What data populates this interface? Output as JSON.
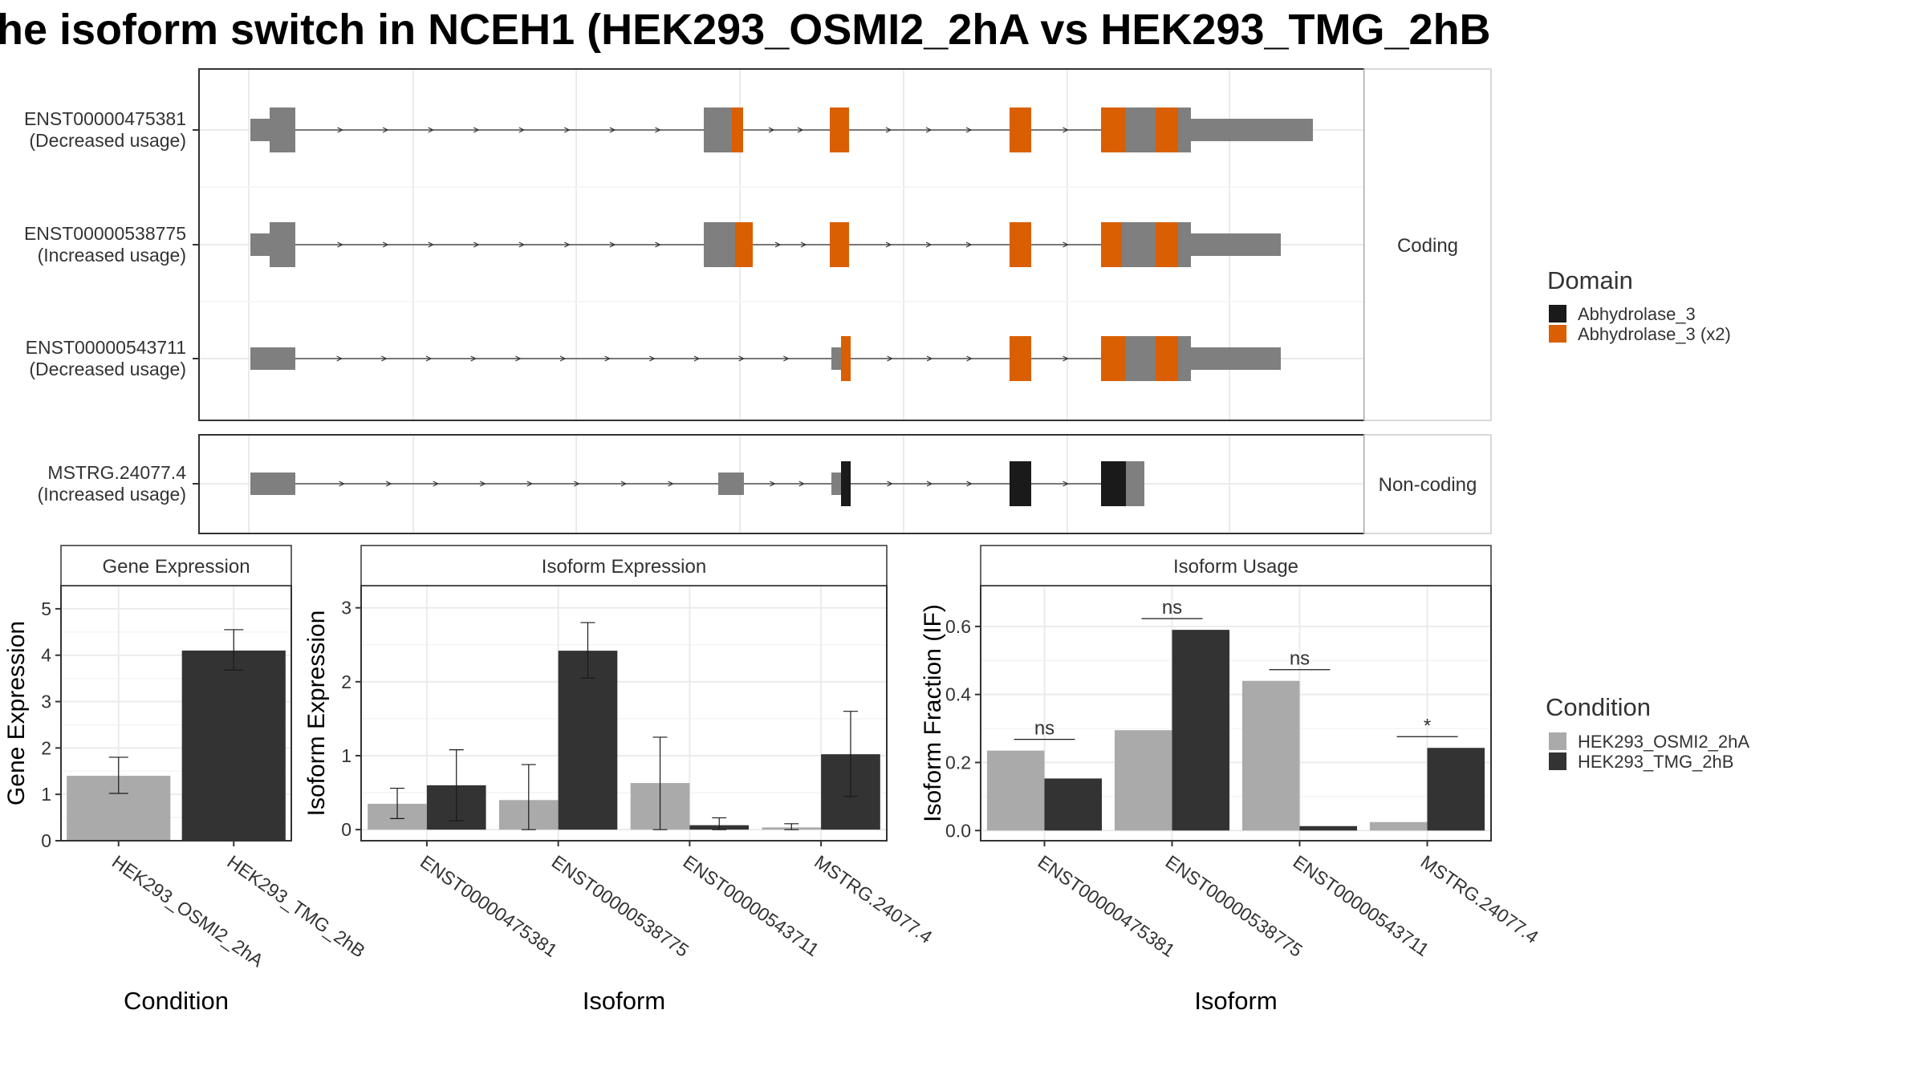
{
  "title": "he isoform switch in NCEH1 (HEK293_OSMI2_2hA vs HEK293_TMG_2hB",
  "colors": {
    "utr": "#7f7f7f",
    "domain_black": "#1a1a1a",
    "domain_orange": "#d95f02",
    "cond1": "#aaaaaa",
    "cond2": "#333333",
    "grid": "#ebebeb",
    "strip_bg": "#f2f2f2"
  },
  "transcript_panel": {
    "groups": [
      {
        "name": "Coding",
        "transcripts": [
          "ENST00000475381",
          "ENST00000538775",
          "ENST00000543711"
        ]
      },
      {
        "name": "Non-coding",
        "transcripts": [
          "MSTRG.24077.4"
        ]
      }
    ],
    "transcripts": [
      {
        "id": "ENST00000475381",
        "label1": "ENST00000475381",
        "label2": "(Decreased usage)"
      },
      {
        "id": "ENST00000538775",
        "label1": "ENST00000538775",
        "label2": "(Increased usage)"
      },
      {
        "id": "ENST00000543711",
        "label1": "ENST00000543711",
        "label2": "(Decreased usage)"
      },
      {
        "id": "MSTRG.24077.4",
        "label1": "MSTRG.24077.4",
        "label2": "(Increased usage)"
      }
    ],
    "legend": {
      "title": "Domain",
      "items": [
        {
          "label": "Abhydrolase_3",
          "color": "#1a1a1a"
        },
        {
          "label": "Abhydrolase_3 (x2)",
          "color": "#d95f02"
        }
      ]
    }
  },
  "chart_data": [
    {
      "type": "bar",
      "strip": "Gene Expression",
      "xlabel": "Condition",
      "ylabel": "Gene Expression",
      "categories": [
        "HEK293_OSMI2_2hA",
        "HEK293_TMG_2hB"
      ],
      "values": [
        1.4,
        4.1
      ],
      "error_low": [
        1.02,
        3.68
      ],
      "error_high": [
        1.8,
        4.55
      ],
      "ylim": [
        0,
        5.5
      ],
      "yticks": [
        0,
        1,
        2,
        3,
        4,
        5
      ]
    },
    {
      "type": "bar",
      "strip": "Isoform Expression",
      "xlabel": "Isoform",
      "ylabel": "Isoform Expression",
      "categories": [
        "ENST00000475381",
        "ENST00000538775",
        "ENST00000543711",
        "MSTRG.24077.4"
      ],
      "series": [
        {
          "name": "HEK293_OSMI2_2hA",
          "values": [
            0.35,
            0.4,
            0.63,
            0.03
          ],
          "error_low": [
            0.15,
            0.0,
            0.0,
            0.0
          ],
          "error_high": [
            0.56,
            0.88,
            1.25,
            0.08
          ]
        },
        {
          "name": "HEK293_TMG_2hB",
          "values": [
            0.6,
            2.42,
            0.06,
            1.02
          ],
          "error_low": [
            0.12,
            2.05,
            0.0,
            0.45
          ],
          "error_high": [
            1.08,
            2.8,
            0.16,
            1.6
          ]
        }
      ],
      "ylim": [
        -0.15,
        3.3
      ],
      "yticks": [
        0,
        1,
        2,
        3
      ]
    },
    {
      "type": "bar",
      "strip": "Isoform Usage",
      "xlabel": "Isoform",
      "ylabel": "Isoform Fraction (IF)",
      "categories": [
        "ENST00000475381",
        "ENST00000538775",
        "ENST00000543711",
        "MSTRG.24077.4"
      ],
      "series": [
        {
          "name": "HEK293_OSMI2_2hA",
          "values": [
            0.235,
            0.295,
            0.44,
            0.025
          ]
        },
        {
          "name": "HEK293_TMG_2hB",
          "values": [
            0.153,
            0.59,
            0.013,
            0.243
          ]
        }
      ],
      "significance": [
        "ns",
        "ns",
        "ns",
        "*"
      ],
      "ylim": [
        -0.03,
        0.72
      ],
      "yticks": [
        "0.0",
        "0.2",
        "0.4",
        "0.6"
      ]
    }
  ],
  "condition_legend": {
    "title": "Condition",
    "items": [
      {
        "label": "HEK293_OSMI2_2hA",
        "color": "#aaaaaa"
      },
      {
        "label": "HEK293_TMG_2hB",
        "color": "#333333"
      }
    ]
  }
}
